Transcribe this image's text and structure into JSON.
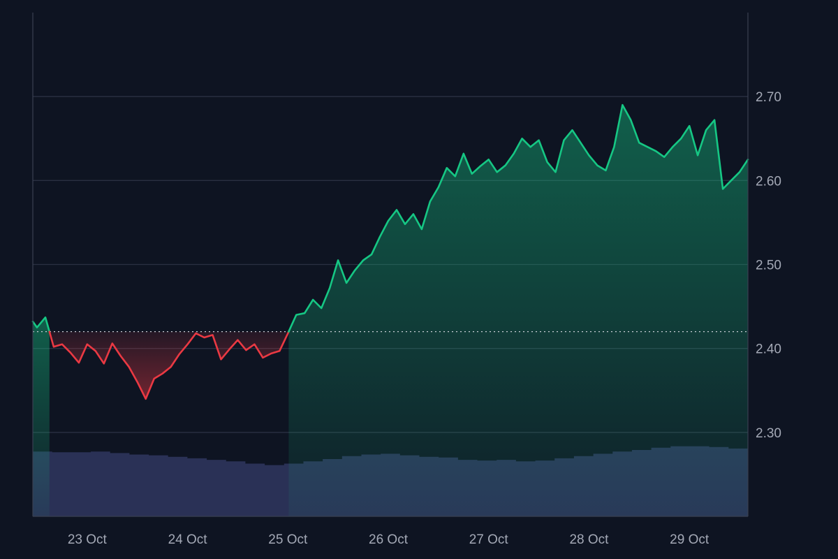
{
  "chart_data": {
    "type": "area",
    "title": "",
    "xlabel": "",
    "ylabel": "",
    "x_ticks": [
      "23 Oct",
      "24 Oct",
      "25 Oct",
      "26 Oct",
      "27 Oct",
      "28 Oct",
      "29 Oct"
    ],
    "y_ticks": [
      "2.30",
      "2.40",
      "2.50",
      "2.60",
      "2.70"
    ],
    "ylim": [
      2.2,
      2.8
    ],
    "xlim": [
      "22 Oct 11:00",
      "29 Oct 14:00"
    ],
    "baseline": 2.42,
    "grid": true,
    "colors": {
      "up": "#16c784",
      "down": "#ea3943",
      "volume": "#2a3156",
      "grid": "#2a3042",
      "background": "#0e1422"
    },
    "series": [
      {
        "x": [
          "22 Oct 11:00",
          "22 Oct 12:00",
          "22 Oct 14:00",
          "22 Oct 16:00",
          "22 Oct 18:00",
          "22 Oct 20:00",
          "22 Oct 22:00",
          "23 Oct 00:00",
          "23 Oct 02:00",
          "23 Oct 04:00",
          "23 Oct 06:00",
          "23 Oct 08:00",
          "23 Oct 10:00",
          "23 Oct 12:00",
          "23 Oct 14:00",
          "23 Oct 16:00",
          "23 Oct 18:00",
          "23 Oct 20:00",
          "23 Oct 22:00",
          "24 Oct 00:00",
          "24 Oct 02:00",
          "24 Oct 04:00",
          "24 Oct 06:00",
          "24 Oct 08:00",
          "24 Oct 10:00",
          "24 Oct 12:00",
          "24 Oct 14:00",
          "24 Oct 16:00",
          "24 Oct 18:00",
          "24 Oct 20:00",
          "24 Oct 22:00",
          "25 Oct 00:00",
          "25 Oct 02:00",
          "25 Oct 04:00",
          "25 Oct 06:00",
          "25 Oct 08:00",
          "25 Oct 10:00",
          "25 Oct 12:00",
          "25 Oct 14:00",
          "25 Oct 16:00",
          "25 Oct 18:00",
          "25 Oct 20:00",
          "25 Oct 22:00",
          "26 Oct 00:00",
          "26 Oct 02:00",
          "26 Oct 04:00",
          "26 Oct 06:00",
          "26 Oct 08:00",
          "26 Oct 10:00",
          "26 Oct 12:00",
          "26 Oct 14:00",
          "26 Oct 16:00",
          "26 Oct 18:00",
          "26 Oct 20:00",
          "26 Oct 22:00",
          "27 Oct 00:00",
          "27 Oct 02:00",
          "27 Oct 04:00",
          "27 Oct 06:00",
          "27 Oct 08:00",
          "27 Oct 10:00",
          "27 Oct 12:00",
          "27 Oct 14:00",
          "27 Oct 16:00",
          "27 Oct 18:00",
          "27 Oct 20:00",
          "27 Oct 22:00",
          "28 Oct 00:00",
          "28 Oct 02:00",
          "28 Oct 04:00",
          "28 Oct 06:00",
          "28 Oct 08:00",
          "28 Oct 10:00",
          "28 Oct 12:00",
          "28 Oct 14:00",
          "28 Oct 16:00",
          "28 Oct 18:00",
          "28 Oct 20:00",
          "28 Oct 22:00",
          "29 Oct 00:00",
          "29 Oct 02:00",
          "29 Oct 04:00",
          "29 Oct 06:00",
          "29 Oct 08:00",
          "29 Oct 10:00",
          "29 Oct 12:00",
          "29 Oct 14:00"
        ],
        "y": [
          2.432,
          2.425,
          2.437,
          2.402,
          2.405,
          2.395,
          2.383,
          2.405,
          2.397,
          2.382,
          2.406,
          2.391,
          2.378,
          2.36,
          2.34,
          2.364,
          2.37,
          2.378,
          2.393,
          2.405,
          2.418,
          2.413,
          2.416,
          2.387,
          2.399,
          2.41,
          2.398,
          2.405,
          2.389,
          2.394,
          2.397,
          2.418,
          2.44,
          2.442,
          2.458,
          2.448,
          2.472,
          2.505,
          2.478,
          2.493,
          2.505,
          2.512,
          2.533,
          2.552,
          2.565,
          2.548,
          2.56,
          2.542,
          2.575,
          2.592,
          2.615,
          2.605,
          2.632,
          2.608,
          2.617,
          2.625,
          2.61,
          2.618,
          2.632,
          2.65,
          2.64,
          2.648,
          2.622,
          2.61,
          2.648,
          2.66,
          2.645,
          2.63,
          2.618,
          2.612,
          2.64,
          2.69,
          2.672,
          2.645,
          2.64,
          2.635,
          2.628,
          2.64,
          2.65,
          2.665,
          2.63,
          2.66,
          2.672,
          2.59,
          2.6,
          2.61,
          2.625
        ]
      }
    ],
    "volume": [
      0.86,
      0.85,
      0.85,
      0.86,
      0.84,
      0.82,
      0.81,
      0.79,
      0.77,
      0.75,
      0.73,
      0.7,
      0.68,
      0.7,
      0.73,
      0.76,
      0.8,
      0.82,
      0.83,
      0.81,
      0.79,
      0.78,
      0.75,
      0.74,
      0.75,
      0.73,
      0.74,
      0.77,
      0.8,
      0.83,
      0.86,
      0.88,
      0.91,
      0.93,
      0.93,
      0.92,
      0.9
    ]
  }
}
